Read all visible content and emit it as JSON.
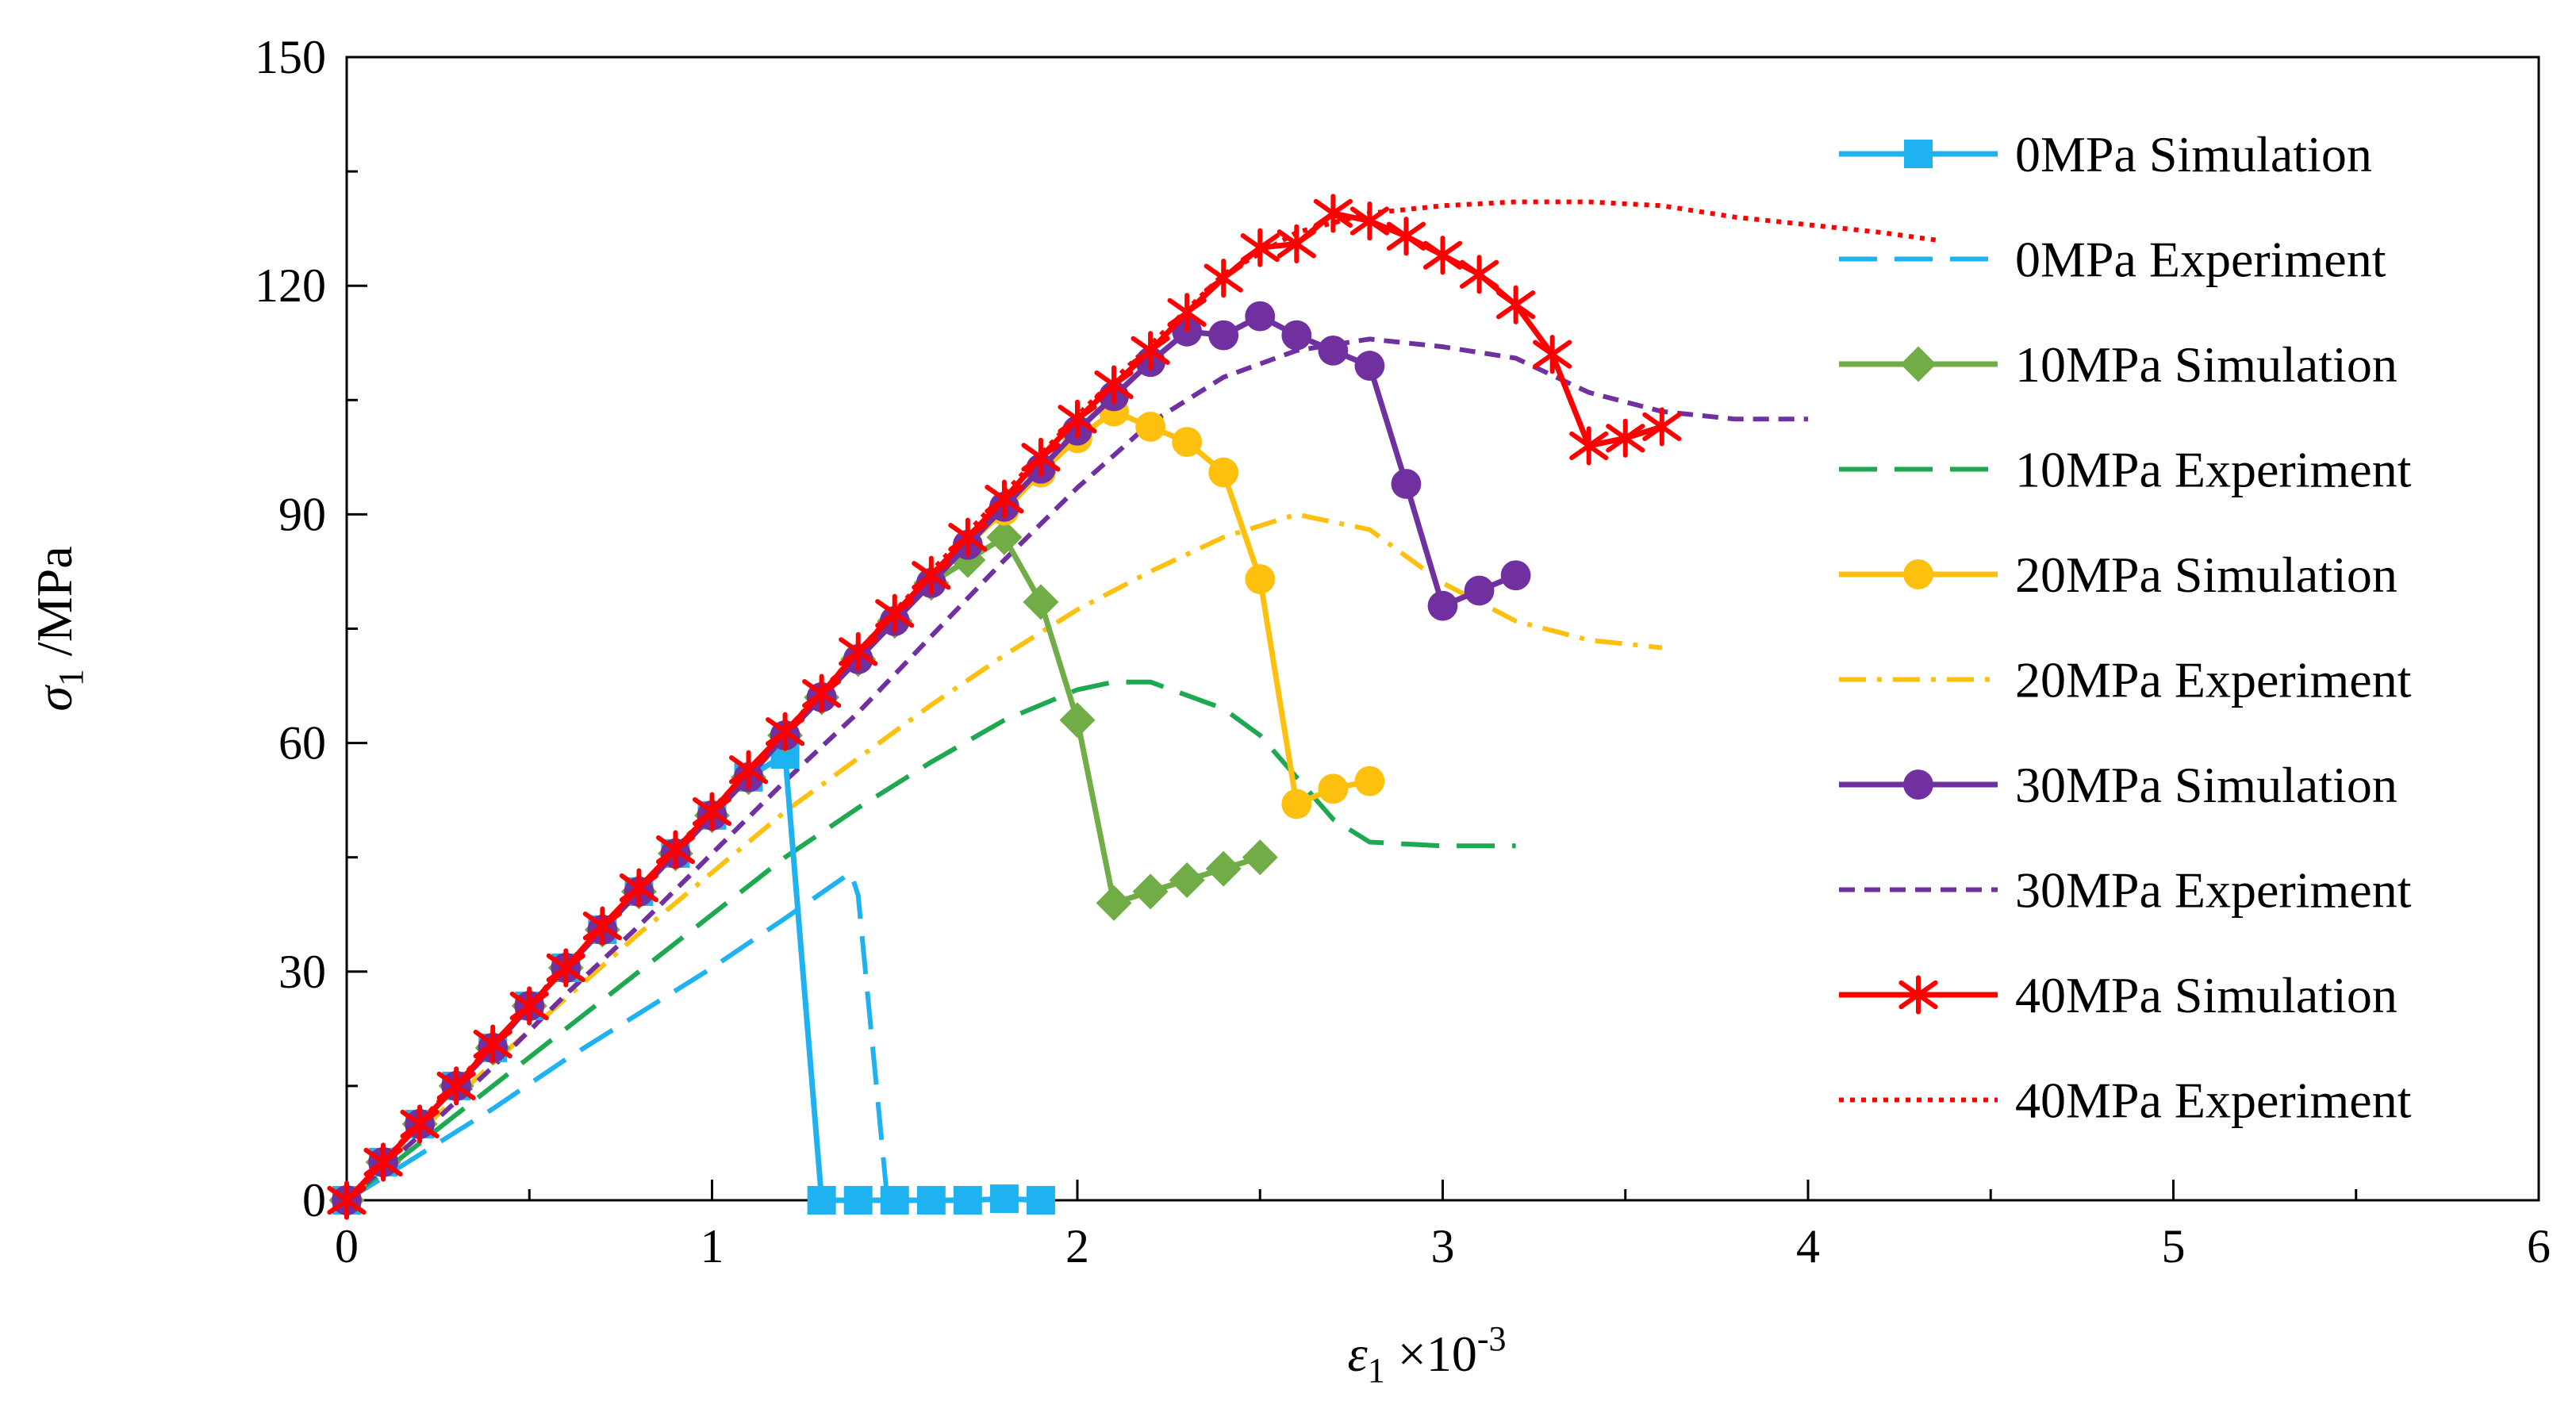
{
  "chart_data": {
    "type": "line",
    "x_axis": {
      "symbol": "ε",
      "subscript": "1",
      "suffix": " ×10",
      "superscript": "-3",
      "range": [
        0,
        6
      ],
      "ticks": [
        0,
        1,
        2,
        3,
        4,
        5,
        6
      ],
      "tick_labels": [
        "0",
        "1",
        "2",
        "3",
        "4",
        "5",
        "6"
      ]
    },
    "y_axis": {
      "symbol": "σ",
      "subscript": "1",
      "suffix": " /MPa",
      "range": [
        0,
        150
      ],
      "ticks": [
        0,
        30,
        60,
        90,
        120,
        150
      ],
      "tick_labels": [
        "0",
        "30",
        "60",
        "90",
        "120",
        "150"
      ]
    },
    "grid": false,
    "legend_position": "right",
    "series": [
      {
        "name": "0MPa Simulation",
        "color": "#1fb2f0",
        "dash": "solid",
        "marker": "square",
        "x": [
          0,
          0.1,
          0.2,
          0.3,
          0.4,
          0.5,
          0.6,
          0.7,
          0.8,
          0.9,
          1.0,
          1.1,
          1.2,
          1.3,
          1.4,
          1.5,
          1.6,
          1.7,
          1.8,
          1.9
        ],
        "y": [
          0,
          5,
          10,
          15,
          20,
          25.5,
          30.5,
          35.5,
          40.5,
          45.5,
          50.5,
          55.5,
          58.5,
          0,
          0,
          0,
          0,
          0,
          0.2,
          0
        ]
      },
      {
        "name": "0MPa Experiment",
        "color": "#1fb2f0",
        "dash": "longdash",
        "marker": "none",
        "x": [
          0,
          0.2,
          0.4,
          0.6,
          0.8,
          1.0,
          1.2,
          1.38,
          1.4,
          1.48
        ],
        "y": [
          0,
          6,
          12,
          18.5,
          24.5,
          30.5,
          37,
          43,
          40,
          0
        ]
      },
      {
        "name": "10MPa Simulation",
        "color": "#70ad47",
        "dash": "solid",
        "marker": "diamond",
        "x": [
          0,
          0.1,
          0.2,
          0.3,
          0.4,
          0.5,
          0.6,
          0.7,
          0.8,
          0.9,
          1.0,
          1.1,
          1.2,
          1.3,
          1.4,
          1.5,
          1.6,
          1.7,
          1.8,
          1.9,
          2.0,
          2.1,
          2.2,
          2.3,
          2.4,
          2.5
        ],
        "y": [
          0,
          5,
          10,
          15,
          20,
          25.5,
          30.5,
          35.5,
          40.5,
          45.5,
          50.5,
          55.5,
          61,
          66,
          71,
          76,
          81,
          84,
          87,
          78.5,
          63,
          39,
          40.5,
          42,
          43.5,
          45
        ]
      },
      {
        "name": "10MPa Experiment",
        "color": "#1ea84f",
        "dash": "longdash",
        "marker": "none",
        "x": [
          0,
          0.2,
          0.4,
          0.6,
          0.8,
          1.0,
          1.2,
          1.4,
          1.6,
          1.8,
          2.0,
          2.1,
          2.2,
          2.4,
          2.5,
          2.6,
          2.7,
          2.8,
          3.0,
          3.2
        ],
        "y": [
          0,
          7.5,
          15,
          22.5,
          30,
          37.5,
          45,
          51.5,
          57.5,
          63,
          67,
          68,
          68,
          64.5,
          61,
          55.5,
          50,
          47,
          46.5,
          46.5
        ]
      },
      {
        "name": "20MPa Simulation",
        "color": "#fdc00e",
        "dash": "solid",
        "marker": "circle",
        "x": [
          0,
          0.1,
          0.2,
          0.3,
          0.4,
          0.5,
          0.6,
          0.7,
          0.8,
          0.9,
          1.0,
          1.1,
          1.2,
          1.3,
          1.4,
          1.5,
          1.6,
          1.7,
          1.8,
          1.9,
          2.0,
          2.1,
          2.2,
          2.3,
          2.4,
          2.5,
          2.6,
          2.7,
          2.8
        ],
        "y": [
          0,
          5,
          10,
          15,
          20,
          25.5,
          30.5,
          35.5,
          40.5,
          45.5,
          50.5,
          55.5,
          61,
          66,
          71,
          76,
          81,
          86,
          90.5,
          95.5,
          100,
          103.5,
          101.5,
          99.5,
          95.5,
          81.5,
          52,
          54,
          55
        ]
      },
      {
        "name": "20MPa Experiment",
        "color": "#fdc00e",
        "dash": "dashdot",
        "marker": "none",
        "x": [
          0,
          0.2,
          0.4,
          0.6,
          0.8,
          1.0,
          1.2,
          1.4,
          1.6,
          1.8,
          2.0,
          2.2,
          2.4,
          2.6,
          2.8,
          3.0,
          3.2,
          3.4,
          3.6
        ],
        "y": [
          0,
          9,
          18,
          26.5,
          35,
          43,
          51,
          58,
          65,
          71.5,
          77.5,
          82.5,
          87,
          90,
          88,
          81,
          76,
          73.5,
          72.5
        ]
      },
      {
        "name": "30MPa Simulation",
        "color": "#7030a0",
        "dash": "solid",
        "marker": "circle",
        "x": [
          0,
          0.1,
          0.2,
          0.3,
          0.4,
          0.5,
          0.6,
          0.7,
          0.8,
          0.9,
          1.0,
          1.1,
          1.2,
          1.3,
          1.4,
          1.5,
          1.6,
          1.7,
          1.8,
          1.9,
          2.0,
          2.1,
          2.2,
          2.3,
          2.4,
          2.5,
          2.6,
          2.7,
          2.8,
          2.9,
          3.0,
          3.1,
          3.2
        ],
        "y": [
          0,
          5,
          10,
          15,
          20,
          25.5,
          30.5,
          35.5,
          40.5,
          45.5,
          50.5,
          55.5,
          61,
          66,
          71,
          76,
          81,
          86,
          91,
          96,
          101,
          105.5,
          110,
          114,
          113.5,
          116,
          113.5,
          111.5,
          109.5,
          94,
          78,
          80,
          82
        ]
      },
      {
        "name": "30MPa Experiment",
        "color": "#7030a0",
        "dash": "dash",
        "marker": "none",
        "x": [
          0,
          0.2,
          0.4,
          0.6,
          0.8,
          1.0,
          1.2,
          1.4,
          1.6,
          1.8,
          2.0,
          2.2,
          2.4,
          2.6,
          2.8,
          3.0,
          3.2,
          3.4,
          3.6,
          3.8,
          4.0
        ],
        "y": [
          0,
          8.5,
          17.5,
          27,
          36,
          45.5,
          55,
          64,
          74,
          84,
          93.5,
          102,
          108,
          111.5,
          113,
          112,
          110.5,
          106,
          103.5,
          102.5,
          102.5
        ]
      },
      {
        "name": "40MPa Simulation",
        "color": "#ff0000",
        "dash": "solid",
        "marker": "star",
        "x": [
          0,
          0.1,
          0.2,
          0.3,
          0.4,
          0.5,
          0.6,
          0.7,
          0.8,
          0.9,
          1.0,
          1.1,
          1.2,
          1.3,
          1.4,
          1.5,
          1.6,
          1.7,
          1.8,
          1.9,
          2.0,
          2.1,
          2.2,
          2.3,
          2.4,
          2.5,
          2.6,
          2.7,
          2.8,
          2.9,
          3.0,
          3.1,
          3.2,
          3.3,
          3.4,
          3.5,
          3.6
        ],
        "y": [
          0,
          5,
          10,
          15,
          20.5,
          25.5,
          30.5,
          36,
          41,
          46,
          51,
          56.5,
          61.5,
          66.5,
          72,
          77,
          82,
          87,
          92,
          97.5,
          102.5,
          107,
          111.5,
          116.5,
          121,
          125,
          125.5,
          129.5,
          128.5,
          126.5,
          124,
          121.5,
          117.5,
          111,
          99,
          100,
          101.5
        ]
      },
      {
        "name": "40MPa Experiment",
        "color": "#ff0000",
        "dash": "dot",
        "marker": "none",
        "x": [
          0,
          0.4,
          0.8,
          1.2,
          1.6,
          2.0,
          2.4,
          2.6,
          2.8,
          3.0,
          3.2,
          3.4,
          3.6,
          3.8,
          4.0,
          4.2,
          4.35
        ],
        "y": [
          0,
          20.5,
          41,
          61.5,
          82.5,
          103,
          121.5,
          127,
          129.5,
          130.5,
          131,
          131,
          130.5,
          129,
          128,
          127,
          126
        ]
      }
    ]
  }
}
